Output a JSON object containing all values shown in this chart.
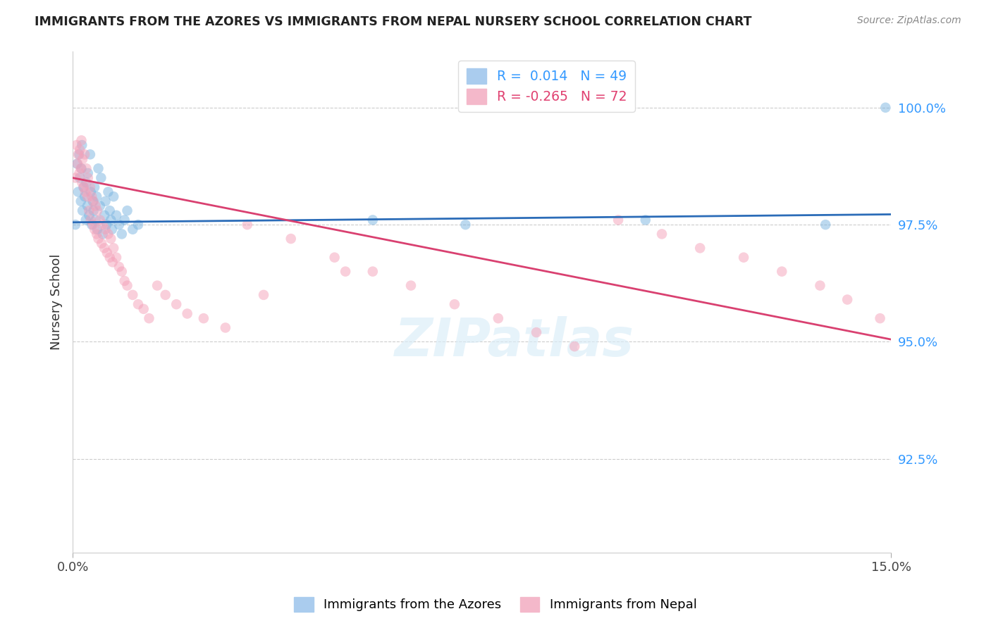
{
  "title": "IMMIGRANTS FROM THE AZORES VS IMMIGRANTS FROM NEPAL NURSERY SCHOOL CORRELATION CHART",
  "source": "Source: ZipAtlas.com",
  "ylabel": "Nursery School",
  "xlim": [
    0.0,
    15.0
  ],
  "ylim": [
    90.5,
    101.2
  ],
  "color_blue": "#7ab4e0",
  "color_pink": "#f4a0b8",
  "watermark": "ZIPatlas",
  "ytick_positions": [
    92.5,
    95.0,
    97.5,
    100.0
  ],
  "ytick_labels": [
    "92.5%",
    "95.0%",
    "97.5%",
    "100.0%"
  ],
  "blue_line_y0": 97.55,
  "blue_line_y1": 97.72,
  "pink_line_y0": 98.5,
  "pink_line_y1": 95.05,
  "azores_x": [
    0.05,
    0.08,
    0.1,
    0.12,
    0.13,
    0.15,
    0.16,
    0.17,
    0.18,
    0.2,
    0.22,
    0.24,
    0.25,
    0.27,
    0.28,
    0.3,
    0.32,
    0.33,
    0.35,
    0.37,
    0.38,
    0.4,
    0.42,
    0.44,
    0.45,
    0.47,
    0.5,
    0.52,
    0.55,
    0.58,
    0.6,
    0.62,
    0.65,
    0.68,
    0.7,
    0.72,
    0.75,
    0.8,
    0.85,
    0.9,
    0.95,
    1.0,
    1.1,
    1.2,
    5.5,
    7.2,
    10.5,
    13.8,
    14.9
  ],
  "azores_y": [
    97.5,
    98.8,
    98.2,
    99.0,
    98.5,
    98.0,
    98.7,
    99.2,
    97.8,
    98.3,
    98.1,
    97.6,
    98.4,
    97.9,
    98.6,
    97.7,
    99.0,
    98.2,
    97.5,
    98.0,
    97.8,
    98.3,
    97.6,
    98.1,
    97.4,
    98.7,
    97.9,
    98.5,
    97.3,
    97.7,
    98.0,
    97.5,
    98.2,
    97.8,
    97.6,
    97.4,
    98.1,
    97.7,
    97.5,
    97.3,
    97.6,
    97.8,
    97.4,
    97.5,
    97.6,
    97.5,
    97.6,
    97.5,
    100.0
  ],
  "nepal_x": [
    0.05,
    0.07,
    0.09,
    0.1,
    0.12,
    0.13,
    0.15,
    0.16,
    0.17,
    0.18,
    0.2,
    0.22,
    0.23,
    0.25,
    0.27,
    0.28,
    0.3,
    0.32,
    0.33,
    0.35,
    0.37,
    0.38,
    0.4,
    0.42,
    0.44,
    0.45,
    0.47,
    0.5,
    0.53,
    0.55,
    0.58,
    0.6,
    0.63,
    0.65,
    0.68,
    0.7,
    0.73,
    0.75,
    0.8,
    0.85,
    0.9,
    0.95,
    1.0,
    1.1,
    1.2,
    1.3,
    1.4,
    1.55,
    1.7,
    1.9,
    2.1,
    2.4,
    2.8,
    3.2,
    4.0,
    4.8,
    5.5,
    6.2,
    7.0,
    7.8,
    8.5,
    9.2,
    10.0,
    10.8,
    11.5,
    12.3,
    13.0,
    13.7,
    14.2,
    14.8,
    3.5,
    5.0
  ],
  "nepal_y": [
    98.5,
    99.2,
    98.8,
    99.0,
    98.6,
    99.1,
    98.7,
    99.3,
    98.4,
    98.9,
    98.3,
    99.0,
    98.2,
    98.7,
    98.1,
    98.5,
    97.8,
    98.3,
    97.6,
    98.1,
    97.5,
    98.0,
    97.4,
    97.9,
    97.3,
    97.8,
    97.2,
    97.6,
    97.1,
    97.5,
    97.0,
    97.4,
    96.9,
    97.3,
    96.8,
    97.2,
    96.7,
    97.0,
    96.8,
    96.6,
    96.5,
    96.3,
    96.2,
    96.0,
    95.8,
    95.7,
    95.5,
    96.2,
    96.0,
    95.8,
    95.6,
    95.5,
    95.3,
    97.5,
    97.2,
    96.8,
    96.5,
    96.2,
    95.8,
    95.5,
    95.2,
    94.9,
    97.6,
    97.3,
    97.0,
    96.8,
    96.5,
    96.2,
    95.9,
    95.5,
    96.0,
    96.5
  ]
}
